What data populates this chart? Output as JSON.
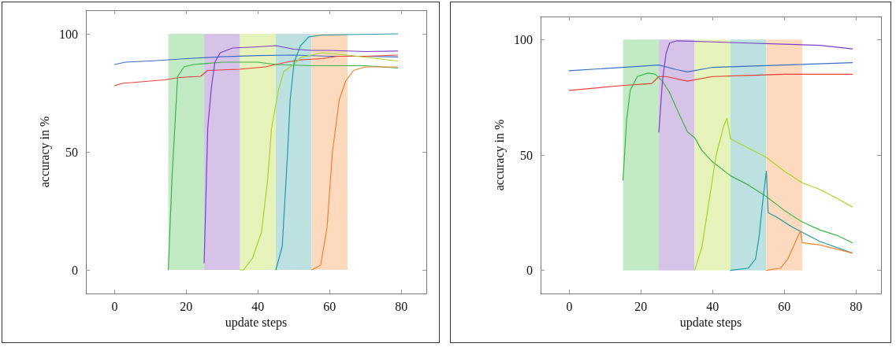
{
  "chart_data": [
    {
      "type": "line",
      "xlabel": "update steps",
      "ylabel": "accuracy in %",
      "xlim": [
        -8,
        87
      ],
      "ylim": [
        -10,
        110
      ],
      "xticks": [
        0,
        20,
        40,
        60,
        80
      ],
      "yticks": [
        0,
        50,
        100
      ],
      "grid": false,
      "marker": "none",
      "line_style": "solid",
      "bands": [
        {
          "axis": "x",
          "from": 15,
          "to": 25,
          "color": "#c2ebc5"
        },
        {
          "axis": "x",
          "from": 25,
          "to": 35,
          "color": "#d7c3e8"
        },
        {
          "axis": "x",
          "from": 35,
          "to": 45,
          "color": "#e6f3bb"
        },
        {
          "axis": "x",
          "from": 45,
          "to": 55,
          "color": "#bde0e0"
        },
        {
          "axis": "x",
          "from": 55,
          "to": 65,
          "color": "#fdd9bd"
        }
      ],
      "series": [
        {
          "color": "#3a6fc4",
          "x": [
            0,
            3,
            10,
            20,
            30,
            40,
            50,
            60,
            70,
            79
          ],
          "values": [
            87,
            88,
            88.5,
            89.5,
            90.3,
            90.8,
            91,
            90.5,
            90.5,
            90.2
          ]
        },
        {
          "color": "#e8403a",
          "x": [
            0,
            2,
            14,
            18,
            24,
            26,
            35,
            42,
            48,
            52,
            58,
            62,
            70,
            79
          ],
          "values": [
            78,
            79,
            80.5,
            81.5,
            82,
            84.5,
            85,
            86,
            88,
            89,
            89.5,
            90.5,
            90.5,
            91
          ]
        },
        {
          "color": "#3cb44b",
          "x": [
            15,
            16,
            17.6,
            19.4,
            22,
            30,
            40,
            45,
            55,
            70,
            79
          ],
          "values": [
            0,
            38,
            82,
            86,
            87,
            88,
            88,
            87,
            86.5,
            86.5,
            85.5
          ]
        },
        {
          "color": "#7e3fc8",
          "x": [
            25,
            26,
            27,
            28,
            29.5,
            33,
            40,
            45,
            50,
            55,
            60,
            70,
            79
          ],
          "values": [
            3,
            60,
            77,
            88,
            92,
            94,
            94.5,
            95,
            93.5,
            93,
            93,
            92.5,
            92.7
          ]
        },
        {
          "color": "#a8d42a",
          "x": [
            35,
            36,
            38.5,
            41,
            42.7,
            43.8,
            45.7,
            47.2,
            50,
            52,
            58,
            65,
            79
          ],
          "values": [
            0,
            0,
            5,
            16,
            38,
            60,
            76,
            84,
            87,
            90,
            92,
            91,
            88.5
          ]
        },
        {
          "color": "#1f9aa8",
          "x": [
            45,
            46.8,
            48.3,
            49,
            50.1,
            51.9,
            54.2,
            58,
            79
          ],
          "values": [
            0,
            10,
            50,
            72,
            88,
            95,
            98.7,
            99.5,
            100
          ]
        },
        {
          "color": "#f58231",
          "x": [
            55,
            57.5,
            59.3,
            60.8,
            62.7,
            64.5,
            66.7,
            70,
            79
          ],
          "values": [
            0,
            2,
            18,
            50,
            72,
            80,
            84.5,
            86,
            86
          ]
        }
      ]
    },
    {
      "type": "line",
      "xlabel": "update steps",
      "ylabel": "accuracy in %",
      "xlim": [
        -8,
        87
      ],
      "ylim": [
        -10,
        110
      ],
      "xticks": [
        0,
        20,
        40,
        60,
        80
      ],
      "yticks": [
        0,
        50,
        100
      ],
      "grid": false,
      "marker": "none",
      "line_style": "solid",
      "bands": [
        {
          "axis": "x",
          "from": 15,
          "to": 25,
          "color": "#c2ebc5"
        },
        {
          "axis": "x",
          "from": 25,
          "to": 35,
          "color": "#d7c3e8"
        },
        {
          "axis": "x",
          "from": 35,
          "to": 45,
          "color": "#e6f3bb"
        },
        {
          "axis": "x",
          "from": 45,
          "to": 55,
          "color": "#bde0e0"
        },
        {
          "axis": "x",
          "from": 55,
          "to": 65,
          "color": "#fdd9bd"
        }
      ],
      "series": [
        {
          "color": "#3a6fc4",
          "x": [
            0,
            15,
            25,
            30,
            33,
            40,
            50,
            60,
            79
          ],
          "values": [
            86.5,
            88,
            89,
            87,
            86,
            88,
            88.5,
            89,
            90
          ]
        },
        {
          "color": "#e8403a",
          "x": [
            0,
            14,
            23,
            25,
            27,
            33,
            40,
            50,
            60,
            79
          ],
          "values": [
            78,
            80,
            81,
            84,
            84,
            82,
            84,
            84.5,
            85,
            85
          ]
        },
        {
          "color": "#3cb44b",
          "x": [
            15,
            16,
            17,
            19,
            22,
            24,
            26,
            28,
            30,
            33,
            35,
            37,
            40,
            45,
            50,
            55,
            60,
            65,
            70,
            75,
            79
          ],
          "values": [
            39,
            65,
            78,
            84,
            85.5,
            85,
            82,
            77,
            70,
            60,
            57.5,
            52,
            47,
            41,
            37,
            32,
            26,
            21,
            17.5,
            15,
            12
          ]
        },
        {
          "color": "#7e3fc8",
          "x": [
            25,
            26,
            27,
            28,
            30,
            40,
            50,
            60,
            70,
            79
          ],
          "values": [
            60,
            82,
            94,
            98.5,
            99.5,
            99,
            98.5,
            98,
            97.5,
            96
          ]
        },
        {
          "color": "#a8d42a",
          "x": [
            35,
            37,
            39,
            41,
            43,
            44,
            45,
            50,
            55,
            60,
            65,
            70,
            75,
            79
          ],
          "values": [
            0,
            10,
            30,
            50,
            62,
            66,
            57,
            53,
            49,
            43,
            38,
            35,
            31,
            27.5
          ]
        },
        {
          "color": "#1f9aa8",
          "x": [
            45,
            50,
            52,
            53,
            54,
            55,
            55.5,
            58,
            62,
            65,
            70,
            79
          ],
          "values": [
            0,
            1,
            5,
            15,
            30,
            43,
            25,
            23,
            19,
            16.5,
            12.5,
            7.5
          ]
        },
        {
          "color": "#f58231",
          "x": [
            55,
            59,
            61,
            63,
            64.5,
            65,
            70,
            79
          ],
          "values": [
            0,
            1,
            5,
            12,
            17,
            12,
            11,
            7.5
          ]
        }
      ]
    }
  ]
}
